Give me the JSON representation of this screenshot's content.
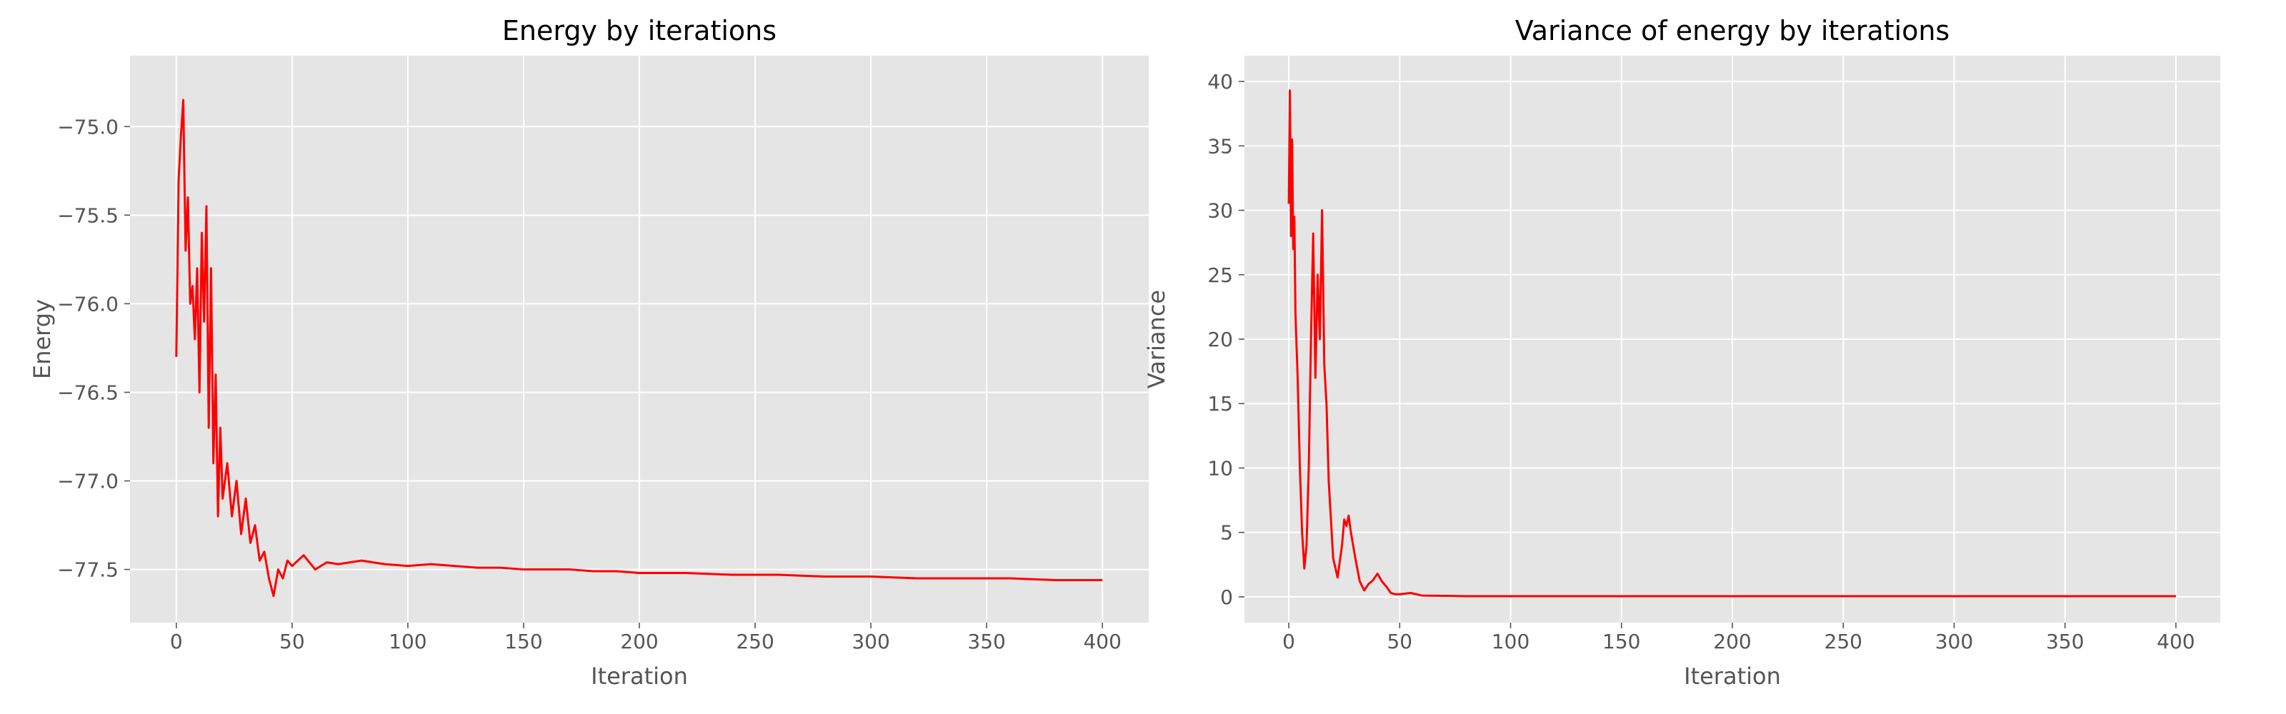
{
  "chart_data": [
    {
      "type": "line",
      "title": "Energy by iterations",
      "xlabel": "Iteration",
      "ylabel": "Energy",
      "xlim": [
        -20,
        420
      ],
      "ylim": [
        -77.8,
        -74.6
      ],
      "xticks": [
        0,
        50,
        100,
        150,
        200,
        250,
        300,
        350,
        400
      ],
      "xtick_labels": [
        "0",
        "50",
        "100",
        "150",
        "200",
        "250",
        "300",
        "350",
        "400"
      ],
      "yticks": [
        -75.0,
        -75.5,
        -76.0,
        -76.5,
        -77.0,
        -77.5
      ],
      "ytick_labels": [
        "−75.0",
        "−75.5",
        "−76.0",
        "−76.5",
        "−77.0",
        "−77.5"
      ],
      "grid": true,
      "style": "ggplot",
      "background": "#E5E5E5",
      "line_color": "#FF0000",
      "series": [
        {
          "x": [
            0,
            1,
            2,
            3,
            4,
            5,
            6,
            7,
            8,
            9,
            10,
            11,
            12,
            13,
            14,
            15,
            16,
            17,
            18,
            19,
            20,
            22,
            24,
            26,
            28,
            30,
            32,
            34,
            36,
            38,
            40,
            42,
            44,
            46,
            48,
            50,
            55,
            60,
            65,
            70,
            80,
            90,
            100,
            110,
            120,
            130,
            140,
            150,
            160,
            170,
            180,
            190,
            200,
            220,
            240,
            260,
            280,
            300,
            320,
            340,
            360,
            380,
            400
          ],
          "y": [
            -76.3,
            -75.3,
            -75.05,
            -74.85,
            -75.7,
            -75.4,
            -76.0,
            -75.9,
            -76.2,
            -75.8,
            -76.5,
            -75.6,
            -76.1,
            -75.45,
            -76.7,
            -75.8,
            -76.9,
            -76.4,
            -77.2,
            -76.7,
            -77.1,
            -76.9,
            -77.2,
            -77.0,
            -77.3,
            -77.1,
            -77.35,
            -77.25,
            -77.45,
            -77.4,
            -77.55,
            -77.65,
            -77.5,
            -77.55,
            -77.45,
            -77.48,
            -77.42,
            -77.5,
            -77.46,
            -77.47,
            -77.45,
            -77.47,
            -77.48,
            -77.47,
            -77.48,
            -77.49,
            -77.49,
            -77.5,
            -77.5,
            -77.5,
            -77.51,
            -77.51,
            -77.52,
            -77.52,
            -77.53,
            -77.53,
            -77.54,
            -77.54,
            -77.55,
            -77.55,
            -77.55,
            -77.56,
            -77.56
          ]
        }
      ]
    },
    {
      "type": "line",
      "title": "Variance of energy by iterations",
      "xlabel": "Iteration",
      "ylabel": "Variance",
      "xlim": [
        -20,
        420
      ],
      "ylim": [
        -2,
        42
      ],
      "xticks": [
        0,
        50,
        100,
        150,
        200,
        250,
        300,
        350,
        400
      ],
      "xtick_labels": [
        "0",
        "50",
        "100",
        "150",
        "200",
        "250",
        "300",
        "350",
        "400"
      ],
      "yticks": [
        0,
        5,
        10,
        15,
        20,
        25,
        30,
        35,
        40
      ],
      "ytick_labels": [
        "0",
        "5",
        "10",
        "15",
        "20",
        "25",
        "30",
        "35",
        "40"
      ],
      "grid": true,
      "style": "ggplot",
      "background": "#E5E5E5",
      "line_color": "#FF0000",
      "series": [
        {
          "x": [
            0,
            0.5,
            1,
            1.5,
            2,
            2.5,
            3,
            4,
            5,
            6,
            7,
            8,
            9,
            10,
            11,
            12,
            13,
            14,
            15,
            16,
            17,
            18,
            19,
            20,
            22,
            24,
            25,
            26,
            27,
            28,
            30,
            32,
            34,
            36,
            38,
            40,
            42,
            44,
            46,
            48,
            50,
            55,
            60,
            70,
            80,
            100,
            150,
            200,
            250,
            300,
            350,
            400
          ],
          "y": [
            30.5,
            39.3,
            28.0,
            35.5,
            27.0,
            29.5,
            22.0,
            17.0,
            10.0,
            5.0,
            2.2,
            4.0,
            10.0,
            20.0,
            28.2,
            17.0,
            25.0,
            20.0,
            30.0,
            18.0,
            15.0,
            9.0,
            6.0,
            3.0,
            1.5,
            4.0,
            6.0,
            5.5,
            6.3,
            5.0,
            3.0,
            1.2,
            0.5,
            1.0,
            1.3,
            1.8,
            1.2,
            0.8,
            0.3,
            0.2,
            0.2,
            0.3,
            0.1,
            0.08,
            0.05,
            0.05,
            0.05,
            0.05,
            0.05,
            0.05,
            0.05,
            0.05
          ]
        }
      ]
    }
  ]
}
